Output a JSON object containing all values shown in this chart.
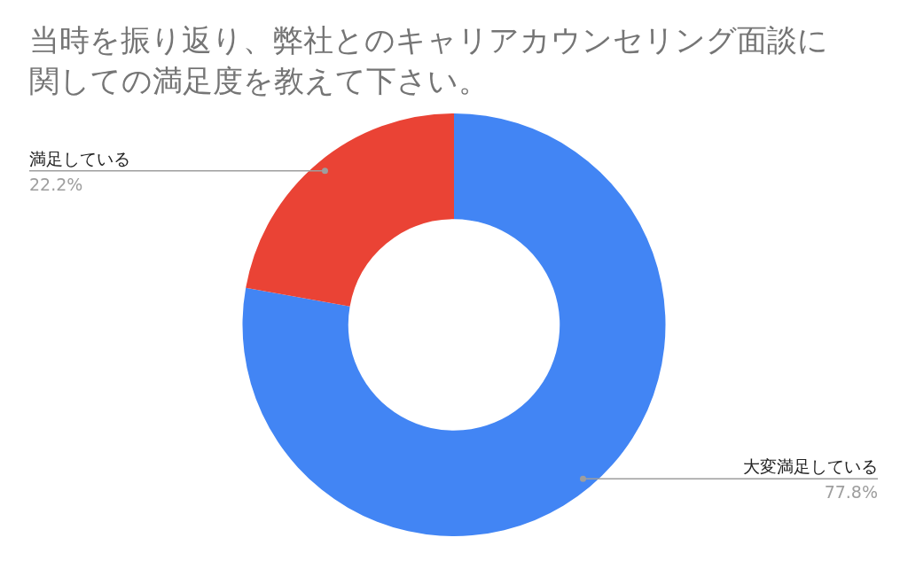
{
  "chart_data": {
    "type": "donut",
    "title": "当時を振り返り、弊社とのキャリアカウンセリング面談に関しての満足度を教えて下さい。",
    "categories": [
      "大変満足している",
      "満足している"
    ],
    "values": [
      77.8,
      22.2
    ],
    "colors": [
      "#4285f4",
      "#ea4335"
    ],
    "value_labels": [
      "77.8%",
      "22.2%"
    ],
    "legend": false
  }
}
